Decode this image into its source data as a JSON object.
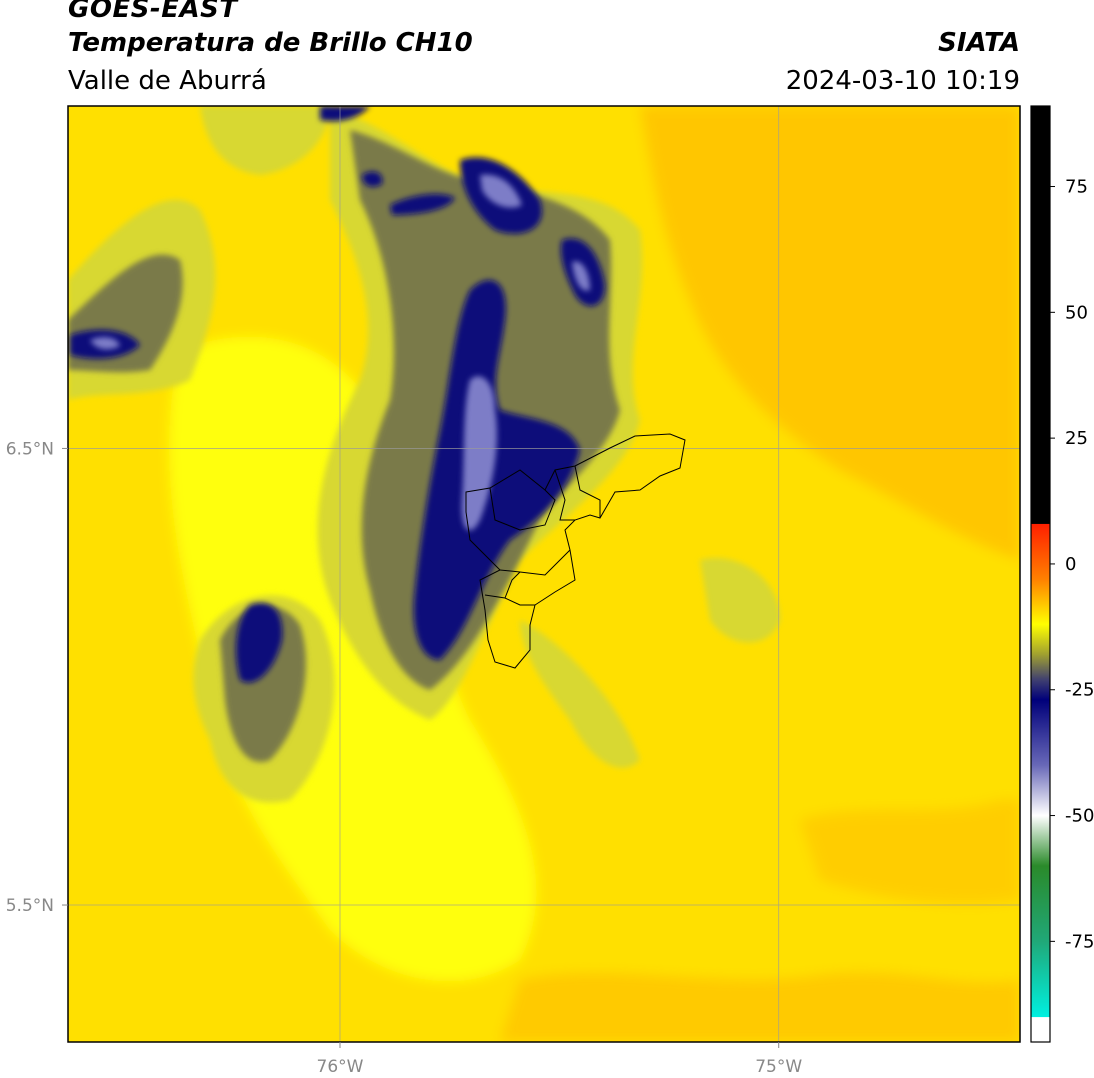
{
  "header": {
    "satellite": "GOES-EAST",
    "product": "Temperatura de Brillo CH10",
    "region": "Valle de Aburrá",
    "agency": "SIATA",
    "datetime": "2024-03-10 10:19"
  },
  "map": {
    "lat_ticks": [
      {
        "value": 6.5,
        "label": "6.5°N"
      },
      {
        "value": 5.5,
        "label": "5.5°N"
      }
    ],
    "lon_ticks": [
      {
        "value": -76.0,
        "label": "76°W"
      },
      {
        "value": -75.0,
        "label": "75°W"
      }
    ],
    "lon_range": [
      -76.62,
      -74.45
    ],
    "lat_range": [
      5.2,
      7.25
    ],
    "background_color": "#ffd700",
    "cloud_colors": [
      "#e8e800",
      "#9a9a30",
      "#55556a",
      "#0a0a78",
      "#3c3caa",
      "#9a9ad0"
    ]
  },
  "colorbar": {
    "ticks": [
      {
        "value": 75,
        "label": "75"
      },
      {
        "value": 50,
        "label": "50"
      },
      {
        "value": 25,
        "label": "25"
      },
      {
        "value": 0,
        "label": "0"
      },
      {
        "value": -25,
        "label": "-25"
      },
      {
        "value": -50,
        "label": "-50"
      },
      {
        "value": -75,
        "label": "-75"
      }
    ],
    "range": [
      -95,
      91
    ],
    "stops": [
      {
        "value": 91,
        "color": "#000000"
      },
      {
        "value": 8,
        "color": "#000000"
      },
      {
        "value": 7.9,
        "color": "#ff2000"
      },
      {
        "value": -3,
        "color": "#ff8000"
      },
      {
        "value": -12,
        "color": "#ffff00"
      },
      {
        "value": -18,
        "color": "#a0a030"
      },
      {
        "value": -23,
        "color": "#404070"
      },
      {
        "value": -27,
        "color": "#00007a"
      },
      {
        "value": -40,
        "color": "#6868b8"
      },
      {
        "value": -50,
        "color": "#ffffff"
      },
      {
        "value": -60,
        "color": "#2a8a2a"
      },
      {
        "value": -75,
        "color": "#20a878"
      },
      {
        "value": -90,
        "color": "#00f0e0"
      },
      {
        "value": -90.1,
        "color": "#ffffff"
      },
      {
        "value": -95,
        "color": "#ffffff"
      }
    ]
  }
}
